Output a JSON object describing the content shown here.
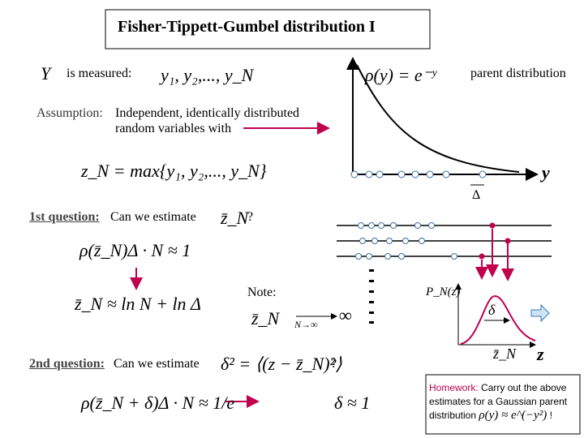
{
  "title": "Fisher-Tippett-Gumbel distribution I",
  "measured": {
    "variable": "Y",
    "label": "is measured:",
    "formula": "y₁, y₂,..., y_N"
  },
  "parent": {
    "formula": "ρ(y) = e⁻ʸ",
    "label": "parent distribution"
  },
  "assumption": {
    "label": "Assumption:",
    "line1": "Independent, identically distributed",
    "line2": "random variables with"
  },
  "max_formula": "z_N = max{y₁, y₂,..., y_N}",
  "graph1": {
    "axis_label": "y",
    "bin_label": "Δ"
  },
  "question1": {
    "label": "1st question:",
    "text": "Can we estimate",
    "symbol": "z̄_N",
    "mark": "?"
  },
  "estimate1": "ρ(z̄_N)Δ · N ≈ 1",
  "estimate2": "z̄_N ≈ ln N + ln Δ",
  "note": {
    "label": "Note:",
    "symbol": "z̄_N",
    "arrow_label": "N→∞",
    "limit": "∞"
  },
  "graph2": {
    "y_label": "P_N(z)",
    "width_label": "δ",
    "peak_label": "z̄_N",
    "x_label": "z"
  },
  "question2": {
    "label": "2nd question:",
    "text": "Can we estimate",
    "formula": "δ² = ⟨(z − z̄_N)²⟩",
    "mark": "?"
  },
  "estimate3": "ρ(z̄_N + δ)Δ · N ≈ 1/e",
  "estimate4": "δ ≈ 1",
  "homework": {
    "label": "Homework:",
    "text": "Carry out the above estimates for a Gaussian parent distribution",
    "formula": "ρ(y) ≈ e^(−y²)",
    "mark": "!"
  }
}
